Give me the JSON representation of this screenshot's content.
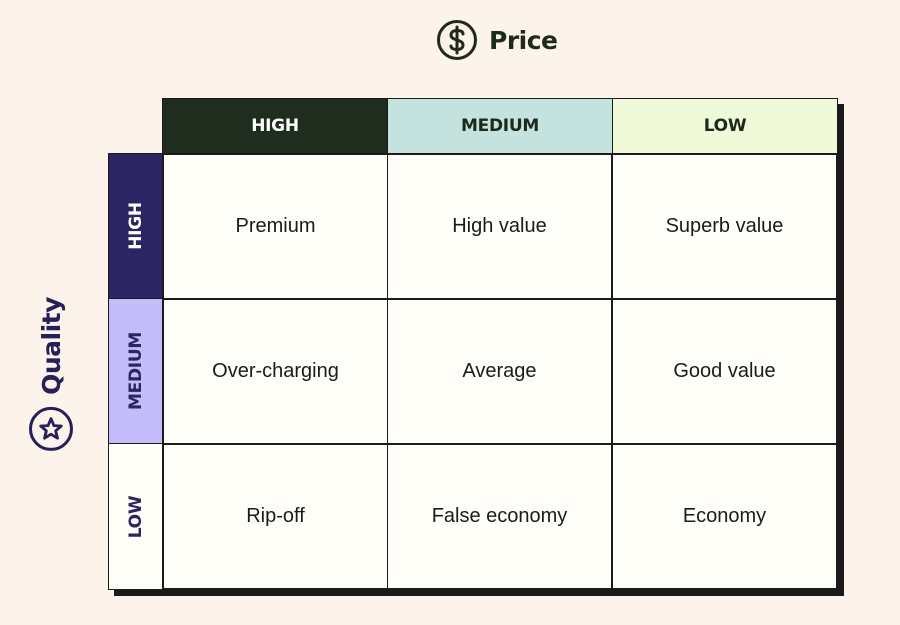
{
  "price_axis": {
    "label": "Price",
    "icon": "dollar-circle-icon"
  },
  "quality_axis": {
    "label": "Quality",
    "icon": "star-circle-icon"
  },
  "columns": [
    {
      "label": "HIGH",
      "bg": "#1f2d1f",
      "fg": "#ffffff"
    },
    {
      "label": "MEDIUM",
      "bg": "#c4e3df",
      "fg": "#1b2a1b"
    },
    {
      "label": "LOW",
      "bg": "#f0fad9",
      "fg": "#1b2a1b"
    }
  ],
  "rows": [
    {
      "label": "HIGH",
      "bg": "#2c2563",
      "fg": "#ffffff"
    },
    {
      "label": "MEDIUM",
      "bg": "#c5bcfb",
      "fg": "#2c2563"
    },
    {
      "label": "LOW",
      "bg": "#fffdf8",
      "fg": "#2c2563"
    }
  ],
  "cells": [
    [
      "Premium",
      "High value",
      "Superb value"
    ],
    [
      "Over-charging",
      "Average",
      "Good value"
    ],
    [
      "Rip-off",
      "False economy",
      "Economy"
    ]
  ]
}
